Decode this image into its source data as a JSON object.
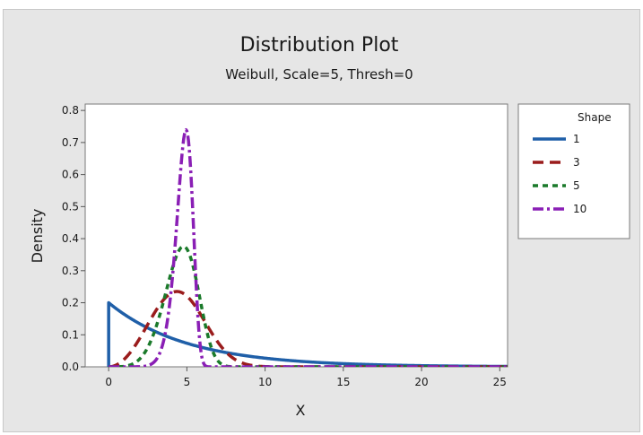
{
  "chart_data": {
    "type": "line",
    "title": "Distribution Plot",
    "subtitle": "Weibull, Scale=5, Thresh=0",
    "xlabel": "X",
    "ylabel": "Density",
    "xlim": [
      -1.5,
      25.5
    ],
    "ylim": [
      0,
      0.82
    ],
    "xticks": [
      0,
      5,
      10,
      15,
      20,
      25
    ],
    "xtick_labels": [
      "0",
      "5",
      "10",
      "15",
      "20",
      "25"
    ],
    "yticks": [
      0,
      0.1,
      0.2,
      0.3,
      0.4,
      0.5,
      0.6,
      0.7,
      0.8
    ],
    "ytick_labels": [
      "0.0",
      "0.1",
      "0.2",
      "0.3",
      "0.4",
      "0.5",
      "0.6",
      "0.7",
      "0.8"
    ],
    "grid": false,
    "legend": {
      "title": "Shape",
      "position": "right"
    },
    "distribution": {
      "family": "Weibull",
      "scale": 5,
      "threshold": 0
    },
    "series": [
      {
        "name": "1",
        "shape": 1,
        "color": "#1f5fa8",
        "dash": "solid",
        "x": [
          0,
          1,
          2,
          3,
          4,
          5,
          6,
          7,
          8,
          10,
          12,
          15,
          18,
          20,
          25
        ],
        "y": [
          0.2,
          0.164,
          0.134,
          0.11,
          0.09,
          0.074,
          0.06,
          0.049,
          0.04,
          0.027,
          0.018,
          0.01,
          0.005,
          0.004,
          0.001
        ]
      },
      {
        "name": "3",
        "shape": 3,
        "color": "#9a1c1c",
        "dash": "dash",
        "x": [
          0,
          1,
          2,
          3,
          4,
          4.5,
          5,
          5.5,
          6,
          7,
          8,
          9,
          10,
          11,
          12
        ],
        "y": [
          0,
          0.024,
          0.091,
          0.174,
          0.221,
          0.226,
          0.221,
          0.202,
          0.168,
          0.097,
          0.041,
          0.012,
          0.002,
          0.0003,
          0
        ]
      },
      {
        "name": "5",
        "shape": 5,
        "color": "#1a7a2a",
        "dash": "shortdash",
        "x": [
          0,
          1,
          2,
          3,
          3.5,
          4,
          4.5,
          5,
          5.5,
          6,
          6.5,
          7,
          8,
          9
        ],
        "y": [
          0,
          0.002,
          0.026,
          0.121,
          0.196,
          0.287,
          0.355,
          0.368,
          0.302,
          0.177,
          0.068,
          0.015,
          0.0002,
          0
        ]
      },
      {
        "name": "10",
        "shape": 10,
        "color": "#8a1fb5",
        "dash": "dashdot",
        "x": [
          0,
          2,
          3,
          3.5,
          4,
          4.5,
          4.75,
          5,
          5.25,
          5.5,
          5.75,
          6,
          6.5,
          7
        ],
        "y": [
          0,
          0,
          0.012,
          0.055,
          0.179,
          0.416,
          0.565,
          0.736,
          0.522,
          0.193,
          0.025,
          0.001,
          0,
          0
        ]
      }
    ]
  }
}
